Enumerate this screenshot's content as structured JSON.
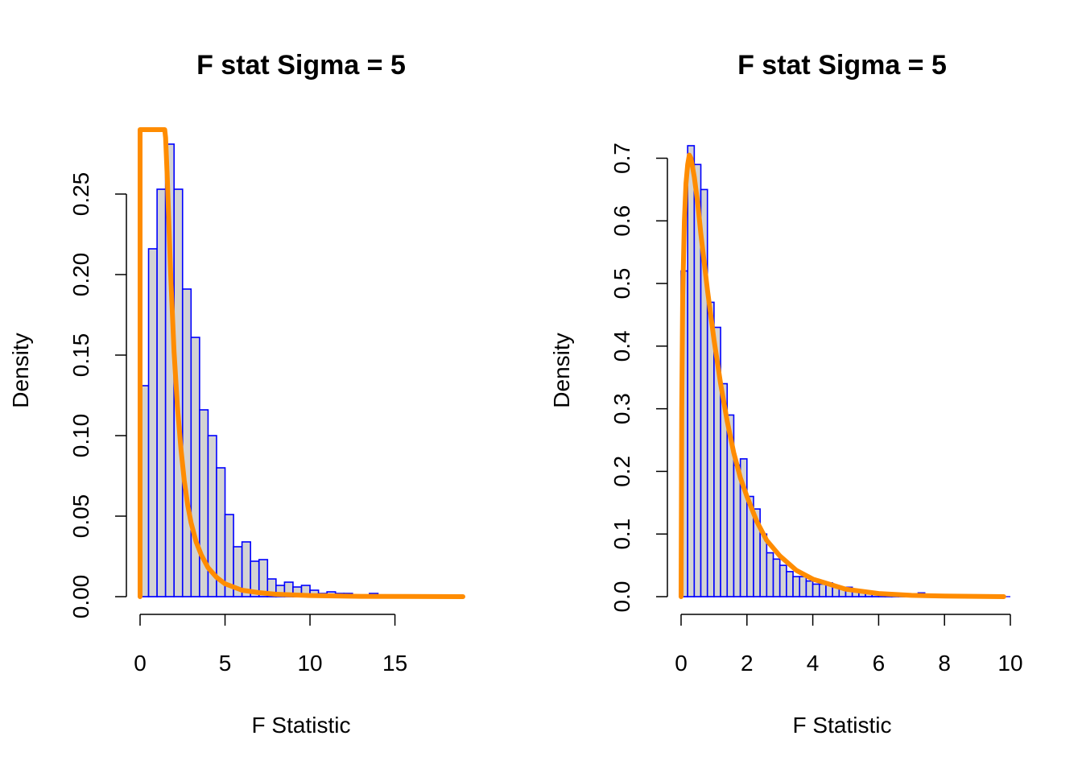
{
  "chart_data": [
    {
      "type": "bar",
      "title": "F stat Sigma = 5",
      "xlabel": "F Statistic",
      "ylabel": "Density",
      "xlim": [
        0,
        19
      ],
      "ylim": [
        0,
        0.29
      ],
      "x_ticks": [
        0,
        5,
        10,
        15
      ],
      "y_ticks": [
        0.0,
        0.05,
        0.1,
        0.15,
        0.2,
        0.25
      ],
      "x_tick_labels": [
        "0",
        "5",
        "10",
        "15"
      ],
      "y_tick_labels": [
        "0.00",
        "0.05",
        "0.10",
        "0.15",
        "0.20",
        "0.25"
      ],
      "bin_width": 0.5,
      "bin_start": 0,
      "values": [
        0.131,
        0.216,
        0.253,
        0.281,
        0.253,
        0.191,
        0.161,
        0.116,
        0.1,
        0.08,
        0.051,
        0.031,
        0.034,
        0.022,
        0.023,
        0.011,
        0.007,
        0.009,
        0.006,
        0.007,
        0.004,
        0.002,
        0.003,
        0.002,
        0.002,
        0.0,
        0.0,
        0.002,
        0.0,
        0.001,
        0.0,
        0.0,
        0.0,
        0.0
      ],
      "bar_fill": "#d3d3d3",
      "bar_stroke": "#0000ff",
      "curve_color": "#ff8c00",
      "curve": {
        "name": "",
        "x": [
          0.0,
          0.0,
          0.0,
          0.1,
          1.4,
          1.45,
          1.5,
          1.6,
          1.7,
          1.8,
          2.0,
          2.2,
          2.4,
          2.6,
          2.8,
          3.0,
          3.3,
          3.6,
          4.0,
          4.5,
          5.0,
          5.5,
          6.0,
          7.0,
          8.0,
          10.0,
          13.0,
          19.0
        ],
        "y": [
          0.0,
          0.29,
          0.29,
          0.29,
          0.29,
          0.29,
          0.285,
          0.26,
          0.23,
          0.2,
          0.152,
          0.118,
          0.092,
          0.072,
          0.057,
          0.046,
          0.034,
          0.026,
          0.018,
          0.012,
          0.008,
          0.006,
          0.004,
          0.0025,
          0.0015,
          0.0007,
          0.0002,
          0.0
        ]
      }
    },
    {
      "type": "bar",
      "title": "F stat Sigma = 5",
      "xlabel": "F Statistic",
      "ylabel": "Density",
      "xlim": [
        0,
        10
      ],
      "ylim": [
        0,
        0.7
      ],
      "x_ticks": [
        0,
        2,
        4,
        6,
        8,
        10
      ],
      "y_ticks": [
        0.0,
        0.1,
        0.2,
        0.3,
        0.4,
        0.5,
        0.6,
        0.7
      ],
      "x_tick_labels": [
        "0",
        "2",
        "4",
        "6",
        "8",
        "10"
      ],
      "y_tick_labels": [
        "0.0",
        "0.1",
        "0.2",
        "0.3",
        "0.4",
        "0.5",
        "0.6",
        "0.7"
      ],
      "bin_width": 0.2,
      "bin_start": 0,
      "values": [
        0.52,
        0.72,
        0.69,
        0.65,
        0.47,
        0.43,
        0.34,
        0.29,
        0.21,
        0.22,
        0.16,
        0.14,
        0.1,
        0.07,
        0.06,
        0.05,
        0.04,
        0.032,
        0.032,
        0.025,
        0.02,
        0.02,
        0.022,
        0.015,
        0.012,
        0.015,
        0.01,
        0.008,
        0.005,
        0.005,
        0.004,
        0.004,
        0.003,
        0.003,
        0.004,
        0.002,
        0.006,
        0.002,
        0.002,
        0.002,
        0.001,
        0.001,
        0.001,
        0.001,
        0.001,
        0.0,
        0.0,
        0.0,
        0.0,
        0.0
      ],
      "bar_fill": "#d3d3d3",
      "bar_stroke": "#0000ff",
      "curve_color": "#ff8c00",
      "curve": {
        "name": "",
        "x": [
          0.0,
          0.02,
          0.05,
          0.1,
          0.15,
          0.2,
          0.25,
          0.3,
          0.4,
          0.5,
          0.6,
          0.8,
          1.0,
          1.2,
          1.4,
          1.6,
          1.8,
          2.0,
          2.3,
          2.6,
          3.0,
          3.5,
          4.0,
          5.0,
          6.0,
          7.0,
          8.0,
          9.8
        ],
        "y": [
          0.0,
          0.3,
          0.48,
          0.6,
          0.66,
          0.69,
          0.705,
          0.7,
          0.67,
          0.63,
          0.58,
          0.49,
          0.41,
          0.34,
          0.28,
          0.23,
          0.19,
          0.16,
          0.12,
          0.09,
          0.065,
          0.042,
          0.028,
          0.012,
          0.005,
          0.002,
          0.001,
          0.0
        ]
      }
    }
  ]
}
